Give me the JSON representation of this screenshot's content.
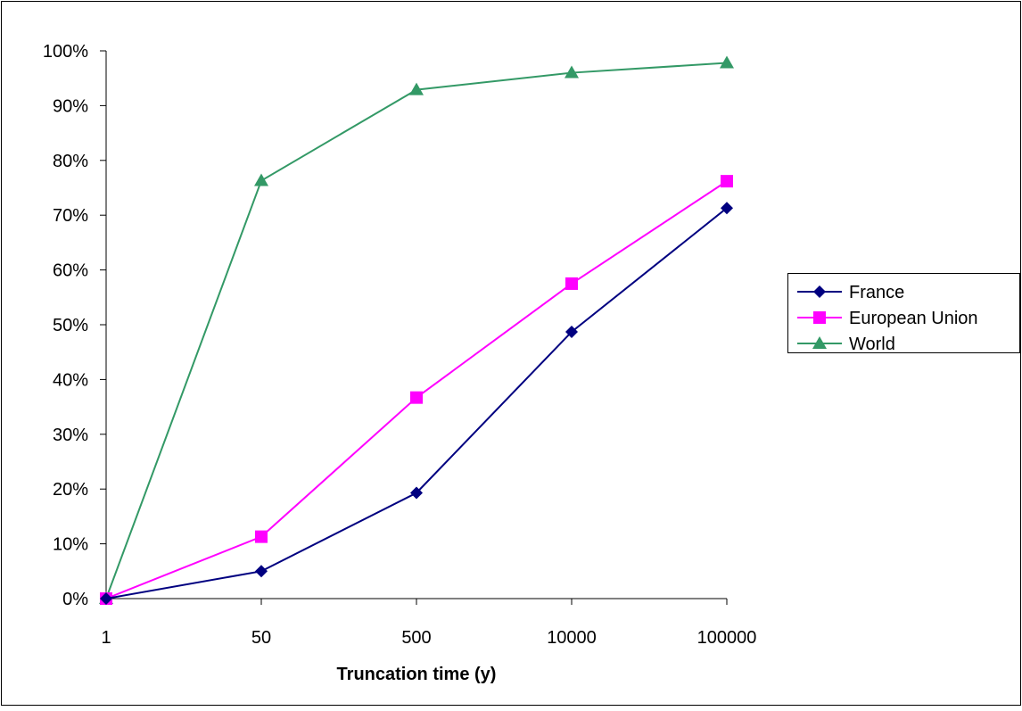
{
  "chart_data": {
    "type": "line",
    "title": "",
    "xlabel": "Truncation time (y)",
    "ylabel": "",
    "categories": [
      "1",
      "50",
      "500",
      "10000",
      "100000"
    ],
    "y_ticks": [
      "0%",
      "10%",
      "20%",
      "30%",
      "40%",
      "50%",
      "60%",
      "70%",
      "80%",
      "90%",
      "100%"
    ],
    "ylim": [
      0,
      1
    ],
    "grid": false,
    "legend_position": "right",
    "series": [
      {
        "name": "France",
        "color": "#000080",
        "marker": "diamond",
        "values": [
          0.0,
          0.05,
          0.193,
          0.487,
          0.713
        ]
      },
      {
        "name": "European Union",
        "color": "#FF00FF",
        "marker": "square",
        "values": [
          0.0,
          0.113,
          0.367,
          0.575,
          0.762
        ]
      },
      {
        "name": "World",
        "color": "#339966",
        "marker": "triangle",
        "values": [
          0.0,
          0.763,
          0.929,
          0.96,
          0.978
        ]
      }
    ]
  }
}
